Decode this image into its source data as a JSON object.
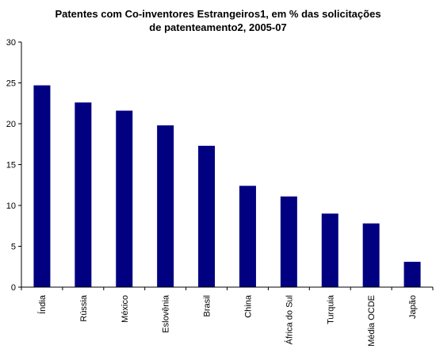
{
  "chart_data": {
    "type": "bar",
    "title_lines": [
      "Patentes com Co-inventores Estrangeiros1, em % das solicitações",
      "de patenteamento2, 2005-07"
    ],
    "categories": [
      "Índia",
      "Rússia",
      "México",
      "Eslovênia",
      "Brasil",
      "China",
      "África do Sul",
      "Turquia",
      "Média OCDE",
      "Japão"
    ],
    "values": [
      24.7,
      22.6,
      21.6,
      19.8,
      17.3,
      12.4,
      11.1,
      9.0,
      7.8,
      3.1
    ],
    "ylim": [
      0,
      30
    ],
    "yticks": [
      "0",
      "5",
      "10",
      "15",
      "20",
      "25",
      "30"
    ],
    "bar_color": "#000080",
    "grid": false,
    "legend": "none"
  }
}
